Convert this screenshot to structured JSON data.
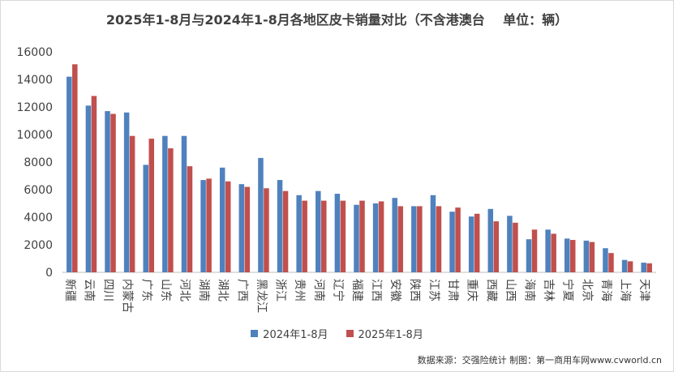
{
  "chart_data": {
    "type": "bar",
    "title": "2025年1-8月与2024年1-8月各地区皮卡销量对比（不含港澳台    单位：辆）",
    "categories": [
      "新疆",
      "云南",
      "四川",
      "内蒙古",
      "广东",
      "山东",
      "河北",
      "湖南",
      "湖北",
      "广西",
      "黑龙江",
      "浙江",
      "贵州",
      "河南",
      "辽宁",
      "福建",
      "江西",
      "安徽",
      "陕西",
      "江苏",
      "甘肃",
      "重庆",
      "西藏",
      "山西",
      "海南",
      "吉林",
      "宁夏",
      "北京",
      "青海",
      "上海",
      "天津"
    ],
    "series": [
      {
        "name": "2024年1-8月",
        "color": "#4f81bd",
        "values": [
          14200,
          12100,
          11700,
          11600,
          7800,
          9900,
          9900,
          6700,
          7600,
          6400,
          8300,
          6700,
          5600,
          5900,
          5700,
          4900,
          5000,
          5400,
          4800,
          5600,
          4400,
          4050,
          4600,
          4100,
          2400,
          3100,
          2450,
          2300,
          1750,
          900,
          700
        ]
      },
      {
        "name": "2025年1-8月",
        "color": "#c0504d",
        "values": [
          15100,
          12800,
          11500,
          9900,
          9700,
          9000,
          7700,
          6800,
          6600,
          6200,
          6100,
          5900,
          5200,
          5200,
          5200,
          5200,
          5150,
          4800,
          4800,
          4800,
          4700,
          4250,
          3700,
          3600,
          3100,
          2800,
          2350,
          2200,
          1400,
          800,
          650
        ]
      }
    ],
    "ylim": [
      0,
      16000
    ],
    "yticks": [
      0,
      2000,
      4000,
      6000,
      8000,
      10000,
      12000,
      14000,
      16000
    ],
    "grid": false,
    "legend": "bottom"
  },
  "source_note": "数据来源：交强险统计 制图：第一商用车网www.cvworld.cn",
  "colors": {
    "axis": "#bfbfbf",
    "text": "#404040"
  }
}
